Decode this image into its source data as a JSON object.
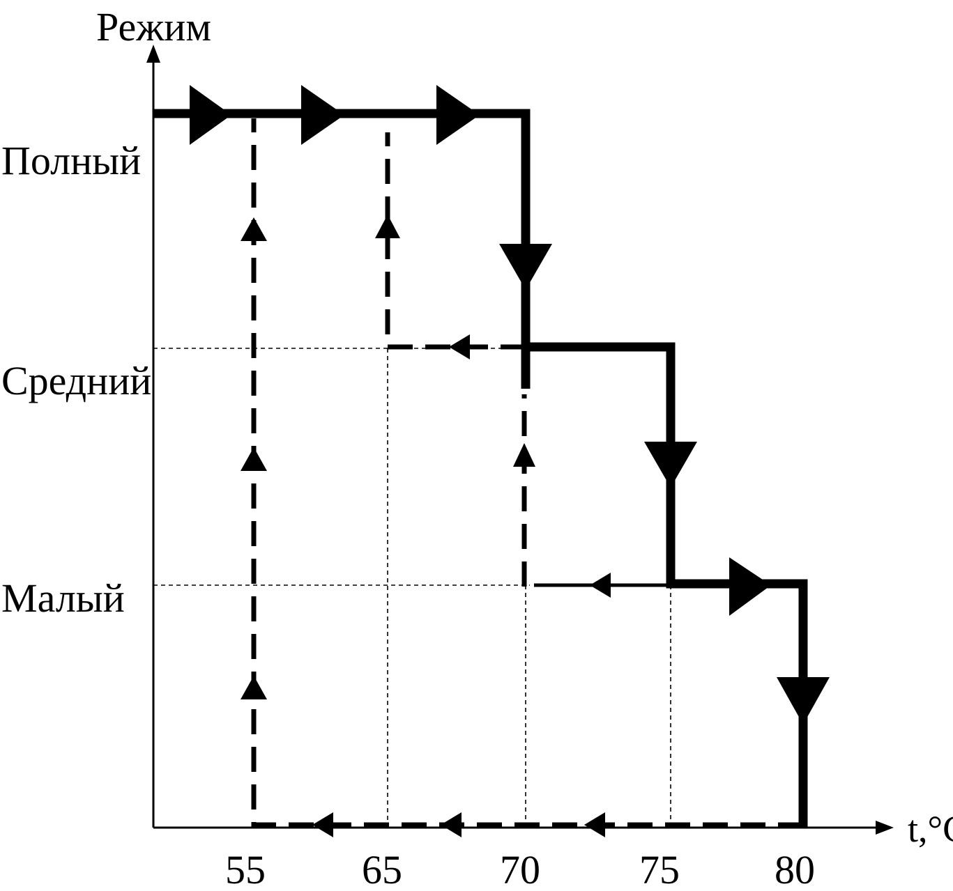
{
  "axes": {
    "y_title": "Режим",
    "x_title": "t,°C"
  },
  "modes": [
    {
      "key": "full",
      "label": "Полный"
    },
    {
      "key": "medium",
      "label": "Средний"
    },
    {
      "key": "low",
      "label": "Малый"
    }
  ],
  "temperatures": [
    "55",
    "65",
    "70",
    "75",
    "80"
  ],
  "colors": {
    "ink": "#000000",
    "background": "#ffffff"
  }
}
